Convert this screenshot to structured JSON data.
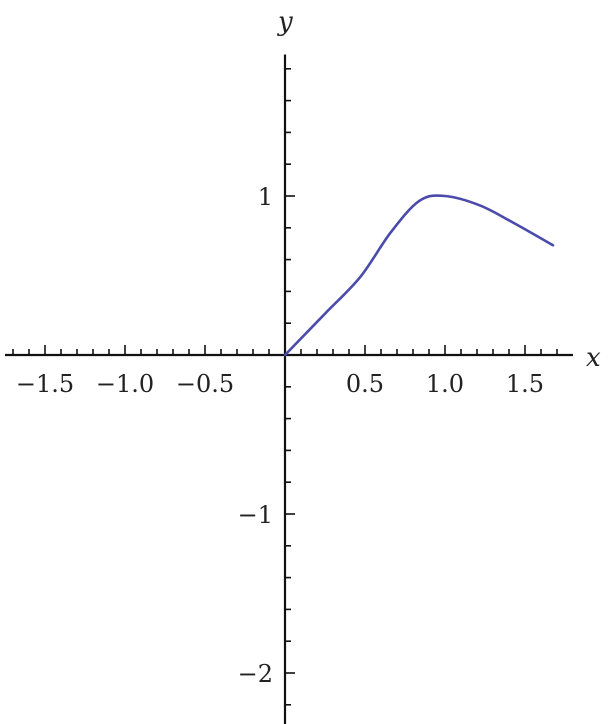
{
  "chart_data": {
    "type": "line",
    "title": "",
    "xlabel": "x",
    "ylabel": "y",
    "xlim": [
      -1.75,
      1.75
    ],
    "ylim": [
      -2.32,
      1.89
    ],
    "x_ticks": [
      {
        "value": -1.5,
        "label": "−1.5"
      },
      {
        "value": -1.0,
        "label": "−1.0"
      },
      {
        "value": -0.5,
        "label": "−0.5"
      },
      {
        "value": 0.5,
        "label": "0.5"
      },
      {
        "value": 1.0,
        "label": "1.0"
      },
      {
        "value": 1.5,
        "label": "1.5"
      }
    ],
    "y_ticks": [
      {
        "value": 1,
        "label": "1"
      },
      {
        "value": -1,
        "label": "−1"
      },
      {
        "value": -2,
        "label": "−2"
      }
    ],
    "grid": false,
    "series": [
      {
        "color": "#4b4bab",
        "points": [
          [
            0,
            0
          ],
          [
            0.25,
            0.26
          ],
          [
            0.47,
            0.49
          ],
          [
            0.66,
            0.77
          ],
          [
            0.84,
            0.97
          ],
          [
            1.0,
            1.0
          ],
          [
            1.22,
            0.94
          ],
          [
            1.43,
            0.83
          ],
          [
            1.675,
            0.69
          ]
        ]
      }
    ]
  }
}
